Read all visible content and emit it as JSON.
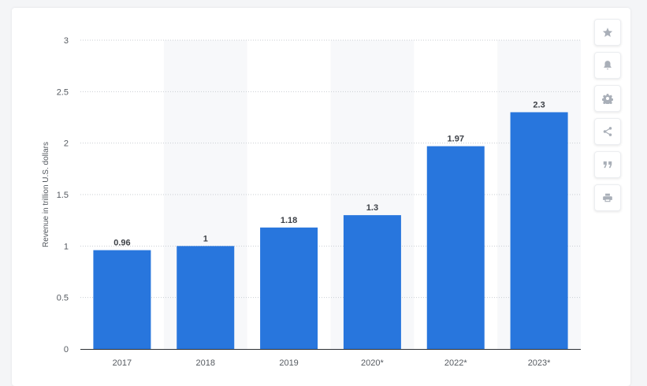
{
  "chart_data": {
    "type": "bar",
    "categories": [
      "2017",
      "2018",
      "2019",
      "2020*",
      "2022*",
      "2023*"
    ],
    "values": [
      0.96,
      1,
      1.18,
      1.3,
      1.97,
      2.3
    ],
    "value_labels": [
      "0.96",
      "1",
      "1.18",
      "1.3",
      "1.97",
      "2.3"
    ],
    "ylabel": "Revenue in trillion U.S. dollars",
    "ylim": [
      0,
      3
    ],
    "yticks": [
      0,
      0.5,
      1,
      1.5,
      2,
      2.5,
      3
    ],
    "ytick_labels": [
      "0",
      "0.5",
      "1",
      "1.5",
      "2",
      "2.5",
      "3"
    ],
    "grid": true,
    "bar_color": "#2876dd"
  },
  "toolbar": [
    {
      "name": "star-icon"
    },
    {
      "name": "bell-icon"
    },
    {
      "name": "gear-icon"
    },
    {
      "name": "share-icon"
    },
    {
      "name": "quote-icon"
    },
    {
      "name": "print-icon"
    }
  ]
}
